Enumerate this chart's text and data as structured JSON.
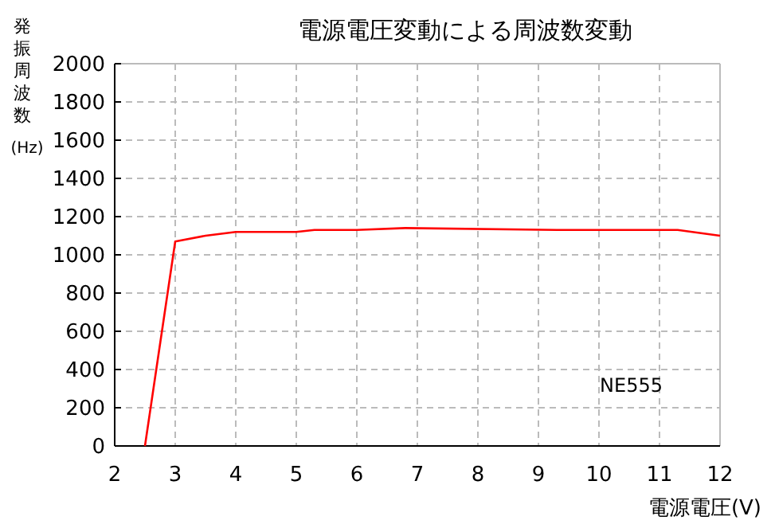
{
  "chart_data": {
    "type": "line",
    "title": "電源電圧変動による周波数変動",
    "xlabel": "電源電圧(V)",
    "ylabel": "発振周波数(Hz)",
    "x": [
      2.5,
      3,
      3.5,
      4,
      5,
      5.3,
      6,
      6.8,
      9.3,
      11.3,
      12
    ],
    "series": [
      {
        "color": "#ff0000",
        "values": [
          0,
          1070,
          1100,
          1120,
          1120,
          1130,
          1130,
          1140,
          1130,
          1130,
          1100
        ]
      }
    ],
    "xlim": [
      2,
      12
    ],
    "xticks": [
      2,
      3,
      4,
      5,
      6,
      7,
      8,
      9,
      10,
      11,
      12
    ],
    "ylim": [
      0,
      2000
    ],
    "yticks": [
      0,
      200,
      400,
      600,
      800,
      1000,
      1200,
      1400,
      1600,
      1800,
      2000
    ],
    "grid": true,
    "marker": "none",
    "line_style": "solid",
    "annotations": [
      "NE555"
    ]
  }
}
